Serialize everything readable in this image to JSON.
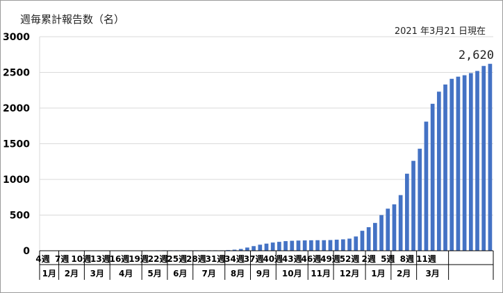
{
  "chart_data": {
    "type": "bar",
    "title": "週毎累計報告数（名）",
    "as_of": "2021 年3月21 日現在",
    "ylim": [
      0,
      3000
    ],
    "y_ticks": [
      "0",
      "500",
      "1000",
      "1500",
      "2000",
      "2500",
      "3000"
    ],
    "bar_color": "#4472c4",
    "grid": true,
    "week_tick_labels": [
      "4週",
      "7週",
      "10週",
      "13週",
      "16週",
      "19週",
      "22週",
      "25週",
      "28週",
      "31週",
      "34週",
      "37週",
      "40週",
      "43週",
      "46週",
      "49週",
      "52週",
      "2週",
      "5週",
      "8週",
      "11週"
    ],
    "month_labels": [
      "1月",
      "2月",
      "3月",
      "4月",
      "5月",
      "6月",
      "7月",
      "8月",
      "9月",
      "10月",
      "11月",
      "12月",
      "1月",
      "2月",
      "3月"
    ],
    "annotation": "2,620",
    "values": [
      0,
      0,
      0,
      0,
      0,
      0,
      0,
      0,
      0,
      0,
      0,
      0,
      0,
      0,
      0,
      3,
      4,
      5,
      6,
      6,
      6,
      6,
      6,
      6,
      6,
      6,
      6,
      6,
      6,
      10,
      15,
      25,
      45,
      65,
      85,
      100,
      115,
      125,
      135,
      140,
      143,
      145,
      147,
      148,
      148,
      150,
      155,
      160,
      170,
      200,
      280,
      330,
      390,
      500,
      590,
      650,
      780,
      1080,
      1260,
      1430,
      1810,
      2060,
      2230,
      2330,
      2410,
      2440,
      2460,
      2490,
      2520,
      2590,
      2620
    ]
  }
}
